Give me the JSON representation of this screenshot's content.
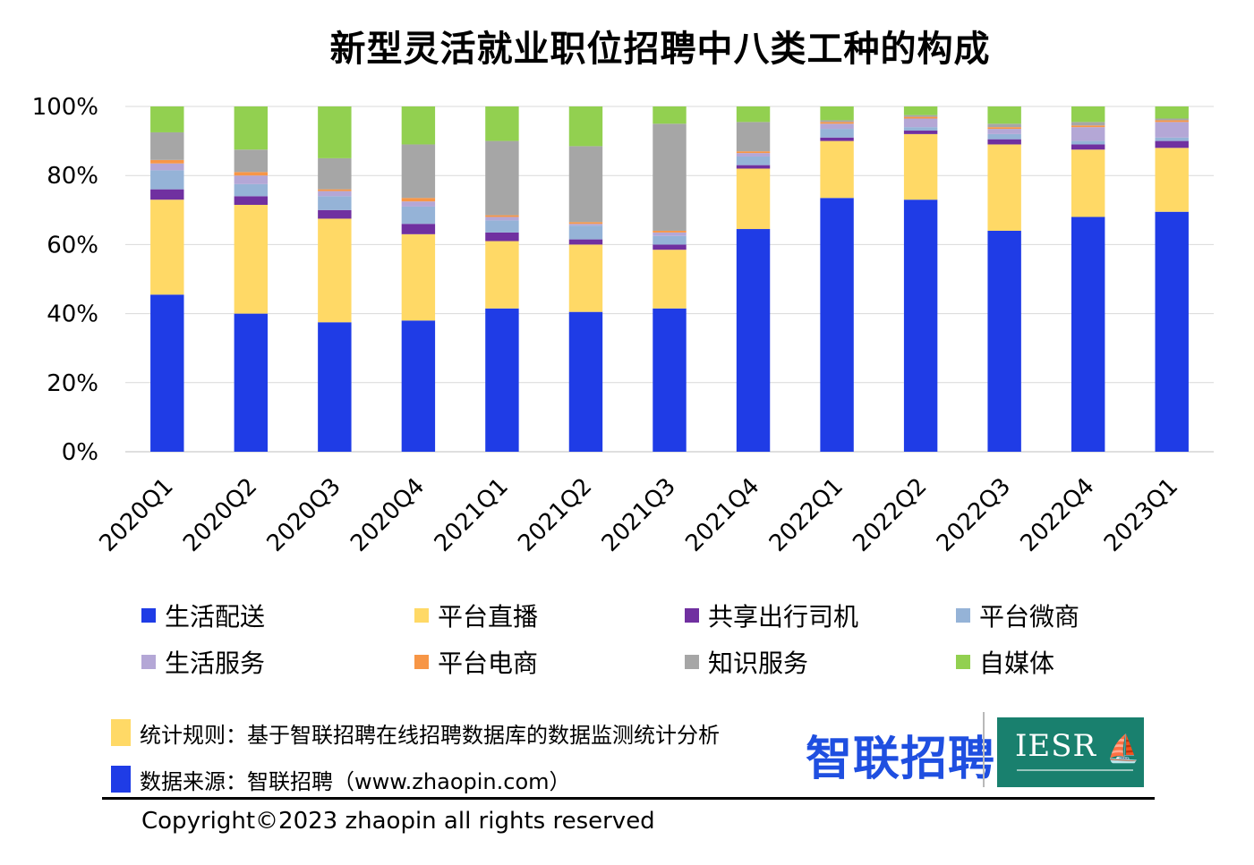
{
  "chart_data": {
    "type": "bar",
    "stacked": true,
    "title": "新型灵活就业职位招聘中八类工种的构成",
    "categories": [
      "2020Q1",
      "2020Q2",
      "2020Q3",
      "2020Q4",
      "2021Q1",
      "2021Q2",
      "2021Q3",
      "2021Q4",
      "2022Q1",
      "2022Q2",
      "2022Q3",
      "2022Q4",
      "2023Q1"
    ],
    "ylim": [
      0,
      100
    ],
    "yticks": [
      "0%",
      "20%",
      "40%",
      "60%",
      "80%",
      "100%"
    ],
    "grid": true,
    "legend_position": "bottom",
    "series": [
      {
        "name": "生活配送",
        "color": "#1f3ce6",
        "values": [
          45.5,
          40.0,
          37.5,
          38.0,
          41.5,
          40.5,
          41.5,
          64.5,
          73.5,
          73.0,
          64.0,
          68.0,
          69.5
        ]
      },
      {
        "name": "平台直播",
        "color": "#ffd966",
        "values": [
          27.5,
          31.5,
          30.0,
          25.0,
          19.5,
          19.5,
          17.0,
          17.5,
          16.5,
          19.0,
          25.0,
          19.5,
          18.5
        ]
      },
      {
        "name": "共享出行司机",
        "color": "#7030a0",
        "values": [
          3.0,
          2.5,
          2.5,
          3.0,
          2.5,
          1.5,
          1.5,
          1.0,
          1.0,
          1.0,
          1.5,
          1.5,
          2.0
        ]
      },
      {
        "name": "平台微商",
        "color": "#95b3d7",
        "values": [
          5.5,
          3.5,
          4.0,
          5.0,
          3.5,
          4.0,
          2.5,
          2.5,
          2.5,
          1.0,
          1.5,
          1.0,
          1.0
        ]
      },
      {
        "name": "生活服务",
        "color": "#b4a7d6",
        "values": [
          2.0,
          2.5,
          1.5,
          1.5,
          1.0,
          0.5,
          1.0,
          1.0,
          1.5,
          2.5,
          1.5,
          4.0,
          4.5
        ]
      },
      {
        "name": "平台电商",
        "color": "#f79646",
        "values": [
          1.0,
          1.0,
          0.5,
          1.0,
          0.5,
          0.5,
          0.5,
          0.5,
          0.5,
          0.5,
          0.5,
          0.5,
          0.5
        ]
      },
      {
        "name": "知识服务",
        "color": "#a6a6a6",
        "values": [
          8.0,
          6.5,
          9.0,
          15.5,
          21.5,
          22.0,
          31.0,
          8.5,
          0.5,
          0.5,
          1.0,
          1.0,
          0.5
        ]
      },
      {
        "name": "自媒体",
        "color": "#92d050",
        "values": [
          7.5,
          12.5,
          15.0,
          11.0,
          10.0,
          11.5,
          5.0,
          4.5,
          4.0,
          2.5,
          5.0,
          4.5,
          3.5
        ]
      }
    ]
  },
  "notes": [
    {
      "label": "统计规则：基于智联招聘在线招聘数据库的数据监测统计分析",
      "color": "#ffd966"
    },
    {
      "label": "数据来源：智联招聘（www.zhaopin.com）",
      "color": "#1f3ce6"
    }
  ],
  "logos": {
    "zhaopin": "智联招聘",
    "iesr": "IESR",
    "iesr_icon": "boat-icon"
  },
  "footer": {
    "copyright": "Copyright©2023 zhaopin all rights reserved"
  }
}
